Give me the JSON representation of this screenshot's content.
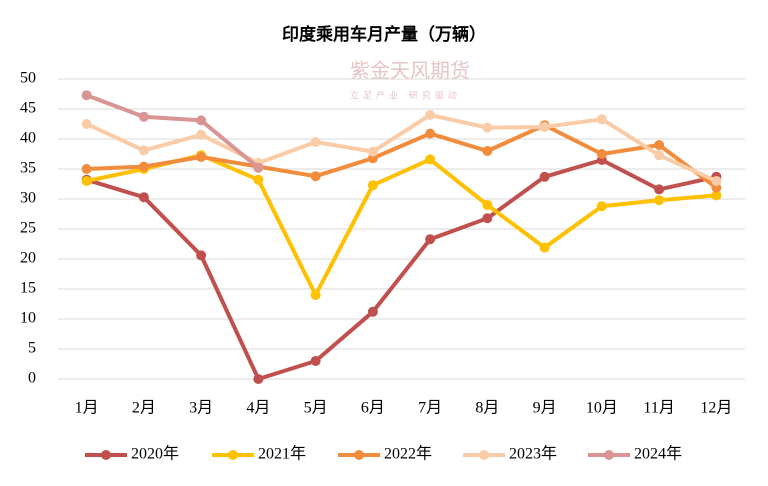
{
  "chart_data": {
    "type": "line",
    "title": "印度乘用车月产量（万辆）",
    "watermark": "紫金天风期货",
    "watermark_sub": "立足产业 研究驱动",
    "categories": [
      "1月",
      "2月",
      "3月",
      "4月",
      "5月",
      "6月",
      "7月",
      "8月",
      "9月",
      "10月",
      "11月",
      "12月"
    ],
    "series": [
      {
        "name": "2020年",
        "color": "#c0504d",
        "values": [
          33.2,
          30.3,
          20.6,
          0,
          3,
          11.2,
          23.3,
          26.8,
          33.7,
          36.5,
          31.6,
          33.7
        ]
      },
      {
        "name": "2021年",
        "color": "#ffc000",
        "values": [
          33,
          35,
          37.3,
          33.2,
          14,
          32.3,
          36.6,
          29,
          21.9,
          28.8,
          29.8,
          30.6
        ]
      },
      {
        "name": "2022年",
        "color": "#f08c3c",
        "values": [
          35,
          35.4,
          37,
          35.4,
          33.8,
          36.8,
          40.9,
          38,
          42.3,
          37.5,
          39,
          31.9
        ]
      },
      {
        "name": "2023年",
        "color": "#f9cba6",
        "values": [
          42.5,
          38.1,
          40.7,
          36,
          39.5,
          37.9,
          44,
          41.9,
          42,
          43.3,
          37.3,
          33
        ]
      },
      {
        "name": "2024年",
        "color": "#d99594",
        "values": [
          47.3,
          43.7,
          43.1,
          35.2,
          null,
          null,
          null,
          null,
          null,
          null,
          null,
          null
        ]
      }
    ],
    "ylim": [
      0,
      50
    ],
    "yticks": [
      0,
      5,
      10,
      15,
      20,
      25,
      30,
      35,
      40,
      45,
      50
    ],
    "grid": true,
    "legend": "bottom"
  }
}
